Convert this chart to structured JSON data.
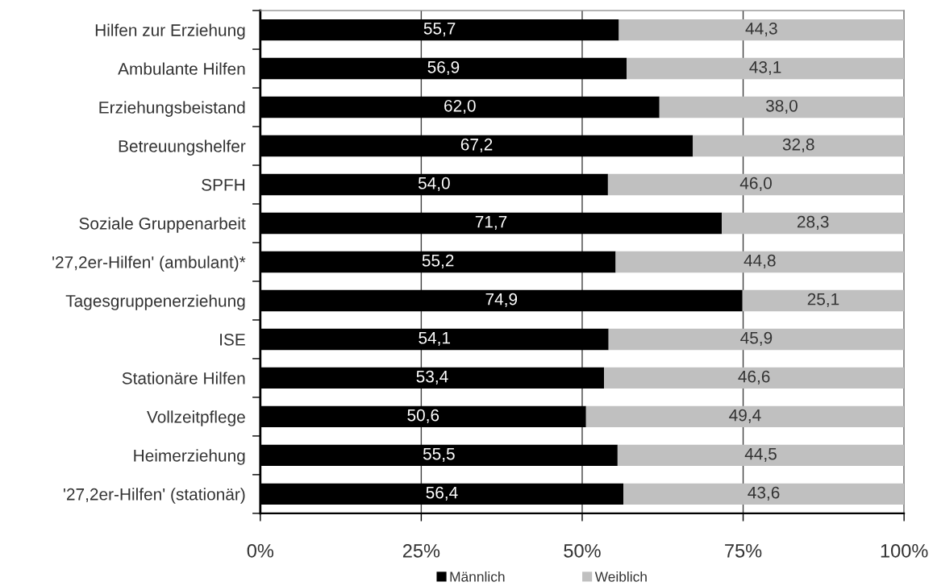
{
  "chart_data": {
    "type": "bar",
    "orientation": "horizontal",
    "stacked": true,
    "categories": [
      "Hilfen zur Erziehung",
      "Ambulante Hilfen",
      "Erziehungsbeistand",
      "Betreuungshelfer",
      "SPFH",
      "Soziale Gruppenarbeit",
      "'27,2er-Hilfen' (ambulant)*",
      "Tagesgruppenerziehung",
      "ISE",
      "Stationäre Hilfen",
      "Vollzeitpflege",
      "Heimerziehung",
      "'27,2er-Hilfen' (stationär)"
    ],
    "series": [
      {
        "name": "Männlich",
        "color": "#000000",
        "values": [
          55.7,
          56.9,
          62.0,
          67.2,
          54.0,
          71.7,
          55.2,
          74.9,
          54.1,
          53.4,
          50.6,
          55.5,
          56.4
        ],
        "value_labels": [
          "55,7",
          "56,9",
          "62,0",
          "67,2",
          "54,0",
          "71,7",
          "55,2",
          "74,9",
          "54,1",
          "53,4",
          "50,6",
          "55,5",
          "56,4"
        ]
      },
      {
        "name": "Weiblich",
        "color": "#c0c0c0",
        "values": [
          44.3,
          43.1,
          38.0,
          32.8,
          46.0,
          28.3,
          44.8,
          25.1,
          45.9,
          46.6,
          49.4,
          44.5,
          43.6
        ],
        "value_labels": [
          "44,3",
          "43,1",
          "38,0",
          "32,8",
          "46,0",
          "28,3",
          "44,8",
          "25,1",
          "45,9",
          "46,6",
          "49,4",
          "44,5",
          "43,6"
        ]
      }
    ],
    "xlim": [
      0,
      100
    ],
    "xticks": [
      {
        "value": 0,
        "label": "0%"
      },
      {
        "value": 25,
        "label": "25%"
      },
      {
        "value": 50,
        "label": "50%"
      },
      {
        "value": 75,
        "label": "75%"
      },
      {
        "value": 100,
        "label": "100%"
      }
    ],
    "grid": "x",
    "legend": "bottom"
  }
}
